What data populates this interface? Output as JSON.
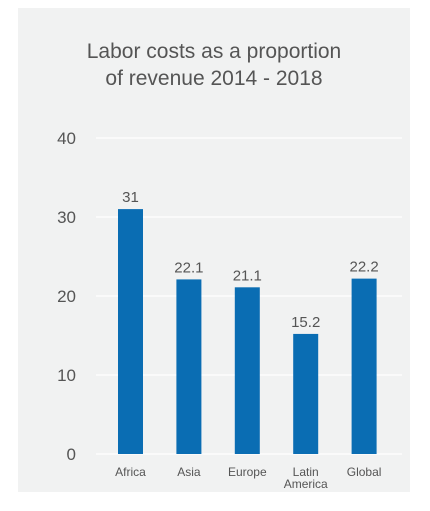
{
  "chart_data": {
    "type": "bar",
    "title_lines": [
      "Labor costs as a proportion",
      "of revenue 2014 - 2018"
    ],
    "categories": [
      [
        "Africa"
      ],
      [
        "Asia"
      ],
      [
        "Europe"
      ],
      [
        "Latin",
        "America"
      ],
      [
        "Global"
      ]
    ],
    "values": [
      31,
      22.1,
      21.1,
      15.2,
      22.2
    ],
    "data_labels": [
      "31",
      "22.1",
      "21.1",
      "15.2",
      "22.2"
    ],
    "ylim": [
      0,
      40
    ],
    "yticks": [
      0,
      10,
      20,
      30,
      40
    ],
    "grid": true,
    "bar_color": "#0a6db3",
    "grid_color": "#ffffff"
  }
}
